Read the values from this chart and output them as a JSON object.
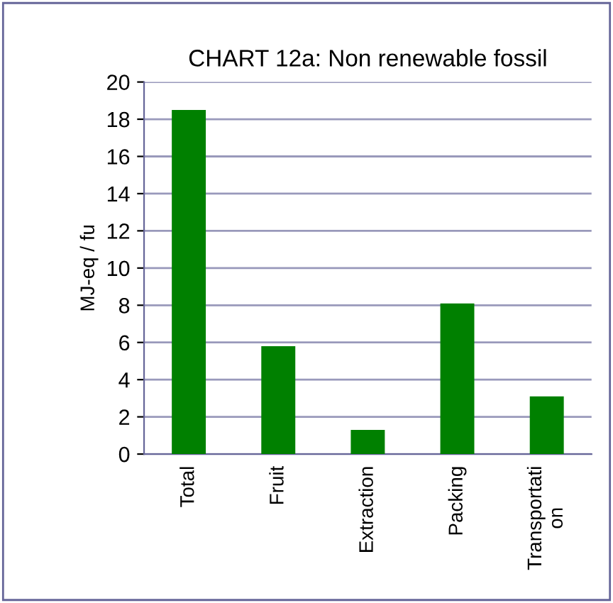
{
  "chart_data": {
    "type": "bar",
    "title": "CHART 12a: Non renewable fossil",
    "ylabel": "MJ-eq / fu",
    "categories": [
      "Total",
      "Fruit",
      "Extraction",
      "Packing",
      "Transportati\non"
    ],
    "values": [
      18.5,
      5.8,
      1.3,
      8.1,
      3.1
    ],
    "color": "#008000",
    "ylim": [
      0,
      20
    ],
    "yticks": [
      0,
      2,
      4,
      6,
      8,
      10,
      12,
      14,
      16,
      18,
      20
    ],
    "grid": "y"
  }
}
